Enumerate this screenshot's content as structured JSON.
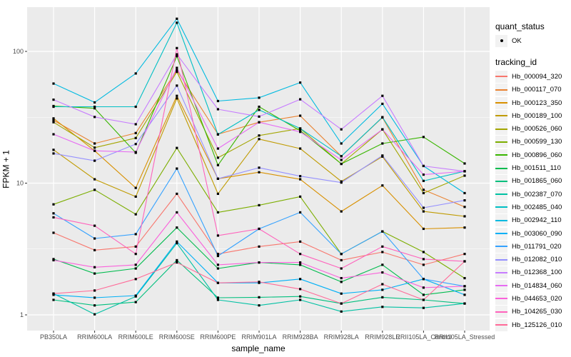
{
  "figure": {
    "background": "#FFFFFF",
    "panel_background": "#EBEBEB",
    "grid_color": "#FFFFFF",
    "tick_color": "#333333",
    "axis_text_color": "#4D4D4D"
  },
  "legend": {
    "quant_title": "quant_status",
    "quant_items": [
      {
        "label": "OK",
        "symbol": "black-point"
      }
    ],
    "tracking_title": "tracking_id"
  },
  "chart_data": {
    "type": "line",
    "title": "",
    "xlabel": "sample_name",
    "ylabel": "FPKM + 1",
    "yscale": "log10",
    "ylim": [
      0.76,
      216
    ],
    "y_major_ticks": [
      1,
      10,
      100
    ],
    "y_minor_ticks": [
      3.1623,
      31.623
    ],
    "grid": true,
    "legend_position": "right",
    "point_color": "#000000",
    "categories": [
      "PB350LA",
      "RRIM600LA",
      "RRIM600LE",
      "RRIM600SE",
      "RRIM600PE",
      "RRIM901LA",
      "RRIM928BA",
      "RRIM928LA",
      "RRIM928LE",
      "RRII105LA_Control",
      "RRII105LA_Stressed"
    ],
    "series": [
      {
        "name": "Hb_000094_320",
        "color": "#F8766D",
        "values": [
          4.2,
          3.1,
          3.3,
          8.3,
          2.9,
          3.3,
          3.6,
          2.6,
          3.0,
          2.4,
          2.9
        ]
      },
      {
        "name": "Hb_000117_070",
        "color": "#EA8331",
        "values": [
          30,
          20,
          24,
          72,
          23.5,
          29,
          32.5,
          16,
          31.5,
          8.9,
          6.6
        ]
      },
      {
        "name": "Hb_000123_350",
        "color": "#D89000",
        "values": [
          31,
          17.6,
          9.2,
          46,
          10.8,
          12.1,
          10.7,
          6.1,
          9.6,
          4.5,
          4.6
        ]
      },
      {
        "name": "Hb_000189_100",
        "color": "#C09B00",
        "values": [
          17.9,
          10.7,
          7.9,
          44,
          8.3,
          21.6,
          18.3,
          10.3,
          15.9,
          6.1,
          5.6
        ]
      },
      {
        "name": "Hb_000526_060",
        "color": "#A3A500",
        "values": [
          29,
          18.6,
          22,
          70,
          15.6,
          23,
          26,
          14,
          25.6,
          8.4,
          11.4
        ]
      },
      {
        "name": "Hb_000599_130",
        "color": "#7CAE00",
        "values": [
          6.9,
          8.9,
          5.8,
          18.5,
          6.0,
          6.8,
          7.9,
          2.9,
          4.3,
          3.0,
          1.9
        ]
      },
      {
        "name": "Hb_000896_060",
        "color": "#39B600",
        "values": [
          38.5,
          37,
          17,
          92,
          13.7,
          38,
          25,
          14,
          20,
          22.4,
          14.1
        ]
      },
      {
        "name": "Hb_001511_110",
        "color": "#00BB4E",
        "values": [
          2.65,
          2.06,
          2.25,
          4.6,
          2.25,
          2.5,
          2.4,
          1.78,
          2.4,
          1.42,
          1.55
        ]
      },
      {
        "name": "Hb_001865_060",
        "color": "#00BF7D",
        "values": [
          1.3,
          1.18,
          1.25,
          2.6,
          1.35,
          1.36,
          1.38,
          1.22,
          1.36,
          1.3,
          1.22
        ]
      },
      {
        "name": "Hb_002387_070",
        "color": "#00C1A3",
        "values": [
          1.45,
          1.01,
          1.38,
          3.5,
          1.3,
          1.18,
          1.3,
          1.06,
          1.15,
          1.13,
          1.22
        ]
      },
      {
        "name": "Hb_002485_040",
        "color": "#00BFC4",
        "values": [
          38,
          38,
          38,
          165,
          23.4,
          36,
          26,
          16,
          31.7,
          10.4,
          12.3
        ]
      },
      {
        "name": "Hb_002942_110",
        "color": "#00BAE0",
        "values": [
          57,
          41,
          68,
          177,
          42,
          44.5,
          58,
          20,
          40,
          13.5,
          8.4
        ]
      },
      {
        "name": "Hb_003060_090",
        "color": "#00B0F6",
        "values": [
          1.42,
          1.35,
          1.4,
          3.6,
          1.75,
          1.75,
          1.87,
          1.45,
          1.55,
          1.87,
          1.42
        ]
      },
      {
        "name": "Hb_011791_020",
        "color": "#35A2FF",
        "values": [
          5.9,
          3.8,
          4.1,
          12.9,
          2.8,
          4.5,
          6.0,
          2.9,
          4.3,
          1.87,
          1.65
        ]
      },
      {
        "name": "Hb_012082_010",
        "color": "#9590FF",
        "values": [
          16.8,
          14.8,
          19.8,
          55,
          10.8,
          13.1,
          11.3,
          10.1,
          16.2,
          6.5,
          7.4
        ]
      },
      {
        "name": "Hb_012368_100",
        "color": "#C77CFF",
        "values": [
          43,
          31.8,
          28,
          95,
          36.4,
          32,
          43.3,
          25.6,
          46,
          13.5,
          12.3
        ]
      },
      {
        "name": "Hb_014834_060",
        "color": "#E76BF3",
        "values": [
          23.5,
          17.6,
          17.2,
          75,
          18.3,
          29,
          24.5,
          15,
          25.6,
          11.6,
          12.3
        ]
      },
      {
        "name": "Hb_044653_020",
        "color": "#FA62DB",
        "values": [
          2.6,
          2.3,
          2.4,
          6.0,
          2.4,
          2.5,
          2.5,
          1.9,
          2.1,
          1.61,
          1.65
        ]
      },
      {
        "name": "Hb_104265_030",
        "color": "#FF62BC",
        "values": [
          5.5,
          4.75,
          2.9,
          106,
          4.0,
          4.5,
          2.9,
          2.25,
          3.3,
          2.65,
          2.55
        ]
      },
      {
        "name": "Hb_125126_010",
        "color": "#FF6A98",
        "values": [
          1.45,
          1.53,
          1.87,
          2.5,
          1.75,
          1.78,
          1.57,
          1.22,
          1.71,
          1.3,
          2.55
        ]
      }
    ]
  }
}
